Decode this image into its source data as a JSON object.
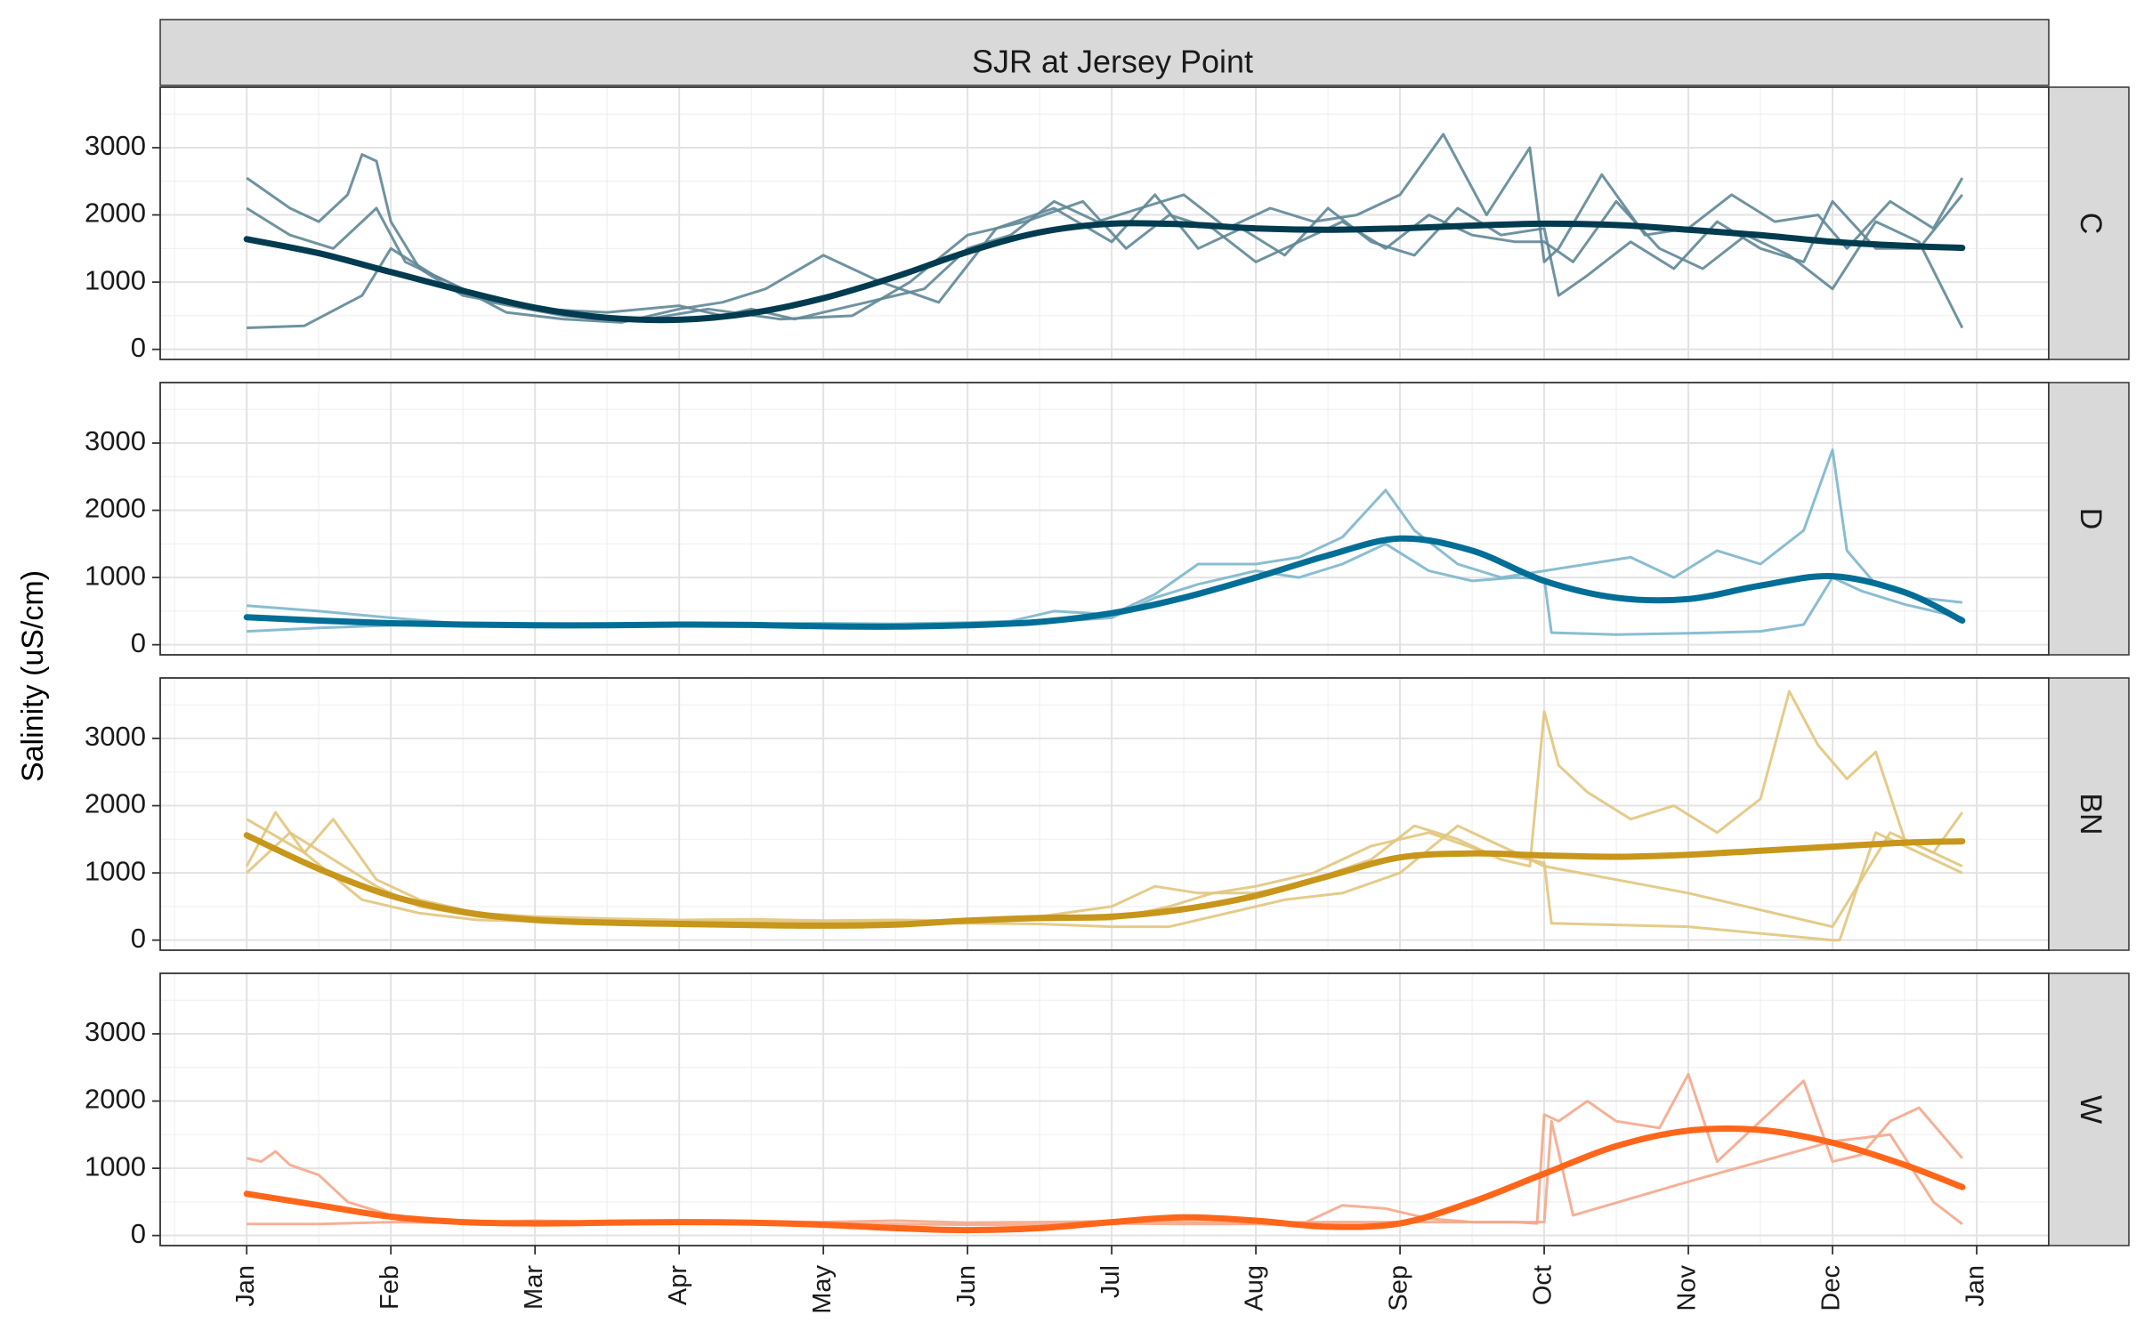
{
  "chart_data": {
    "type": "line",
    "title": "SJR at Jersey Point",
    "ylabel": "Salinity (uS/cm)",
    "xlabel": "",
    "x_ticks": [
      "Jan",
      "Feb",
      "Mar",
      "Apr",
      "May",
      "Jun",
      "Jul",
      "Aug",
      "Sep",
      "Oct",
      "Nov",
      "Dec",
      "Jan"
    ],
    "y_ticks": [
      0,
      1000,
      2000,
      3000
    ],
    "ylim": [
      -150,
      3900
    ],
    "xlim_month": [
      -0.6,
      12.5
    ],
    "grid": true,
    "facets": [
      {
        "label": "C",
        "color": "#003b4f",
        "faint_color": "#5f8796",
        "raw_series": [
          {
            "x": [
              0,
              0.3,
              0.5,
              0.7,
              0.8,
              0.9,
              1.0,
              1.2,
              1.5,
              2.0,
              2.5,
              3.0,
              3.3,
              3.5,
              3.8,
              4.0,
              4.3,
              4.7,
              5.0,
              5.3,
              5.6,
              5.9,
              6.2,
              6.5,
              6.8,
              7.1,
              7.4,
              7.7,
              8.0,
              8.3,
              8.6,
              8.9,
              9.0,
              9.1,
              9.4,
              9.7,
              10.0,
              10.3,
              10.6,
              10.9,
              11.1,
              11.4,
              11.7,
              11.9
            ],
            "y": [
              2550,
              2100,
              1900,
              2300,
              2900,
              2800,
              1900,
              1200,
              800,
              600,
              550,
              650,
              500,
              600,
              450,
              550,
              700,
              900,
              1500,
              1700,
              2200,
              1900,
              2100,
              2300,
              1800,
              2100,
              1900,
              2000,
              2300,
              3200,
              2000,
              3000,
              1300,
              1500,
              2600,
              1700,
              1800,
              2300,
              1900,
              2000,
              1500,
              2200,
              1800,
              2550
            ]
          },
          {
            "x": [
              0,
              0.3,
              0.6,
              0.9,
              1.1,
              1.4,
              1.8,
              2.2,
              2.6,
              3.0,
              3.3,
              3.6,
              4.0,
              4.4,
              4.8,
              5.2,
              5.6,
              6.0,
              6.3,
              6.6,
              6.9,
              7.2,
              7.5,
              7.8,
              8.1,
              8.4,
              8.7,
              9.0,
              9.1,
              9.3,
              9.6,
              9.9,
              10.2,
              10.5,
              10.8,
              11.0,
              11.3,
              11.6,
              11.9
            ],
            "y": [
              2100,
              1700,
              1500,
              2100,
              1300,
              1000,
              550,
              450,
              400,
              600,
              700,
              900,
              1400,
              1000,
              700,
              1800,
              2100,
              1600,
              2300,
              1500,
              1800,
              1400,
              2100,
              1600,
              1400,
              2100,
              1700,
              1800,
              800,
              1100,
              1600,
              1200,
              1900,
              1500,
              1300,
              2200,
              1500,
              1500,
              2300
            ]
          },
          {
            "x": [
              0,
              0.4,
              0.8,
              1.0,
              1.3,
              1.7,
              2.2,
              2.7,
              3.2,
              3.7,
              4.2,
              4.6,
              5.0,
              5.4,
              5.8,
              6.1,
              6.4,
              6.7,
              7.0,
              7.3,
              7.6,
              7.9,
              8.2,
              8.5,
              8.8,
              9.0,
              9.2,
              9.5,
              9.8,
              10.1,
              10.4,
              10.7,
              11.0,
              11.3,
              11.6,
              11.9
            ],
            "y": [
              320,
              350,
              800,
              1500,
              1100,
              700,
              500,
              420,
              600,
              450,
              500,
              1000,
              1700,
              1900,
              2200,
              1500,
              2000,
              1800,
              1300,
              1600,
              1900,
              1500,
              2000,
              1700,
              1600,
              1600,
              1300,
              2200,
              1500,
              1200,
              1700,
              1400,
              900,
              1900,
              1600,
              320
            ]
          }
        ],
        "smooth": {
          "x": [
            0,
            0.5,
            1,
            1.5,
            2,
            2.5,
            3,
            3.5,
            4,
            4.5,
            5,
            5.5,
            6,
            6.5,
            7,
            7.5,
            8,
            8.5,
            9,
            9.5,
            10,
            10.5,
            11,
            11.5,
            11.9
          ],
          "y": [
            1640,
            1430,
            1150,
            870,
            620,
            470,
            440,
            540,
            760,
            1080,
            1450,
            1740,
            1870,
            1860,
            1800,
            1780,
            1800,
            1840,
            1870,
            1850,
            1780,
            1700,
            1600,
            1540,
            1510
          ]
        }
      },
      {
        "label": "D",
        "color": "#006e96",
        "faint_color": "#7cb6cc",
        "raw_series": [
          {
            "x": [
              0,
              0.5,
              1,
              1.5,
              2,
              2.5,
              3,
              3.5,
              4,
              4.5,
              5,
              5.3,
              5.6,
              6.0,
              6.3,
              6.6,
              7.0,
              7.3,
              7.6,
              7.9,
              8.1,
              8.4,
              8.7,
              9.0,
              9.3,
              9.6,
              9.9,
              10.2,
              10.5,
              10.8,
              11.0,
              11.1,
              11.3,
              11.6,
              11.9
            ],
            "y": [
              580,
              500,
              400,
              310,
              290,
              300,
              300,
              310,
              320,
              310,
              330,
              350,
              500,
              450,
              750,
              1200,
              1200,
              1300,
              1600,
              2300,
              1700,
              1200,
              1000,
              1100,
              1200,
              1300,
              1000,
              1400,
              1200,
              1700,
              2900,
              1400,
              900,
              700,
              630
            ]
          },
          {
            "x": [
              0,
              0.5,
              1,
              1.5,
              2,
              2.5,
              3,
              3.5,
              4,
              4.5,
              5,
              5.5,
              6,
              6.3,
              6.6,
              7.0,
              7.3,
              7.6,
              7.9,
              8.2,
              8.5,
              8.8,
              9.0,
              9.05,
              9.5,
              10.0,
              10.5,
              10.8,
              11.0,
              11.2,
              11.5,
              11.9
            ],
            "y": [
              200,
              250,
              290,
              300,
              280,
              300,
              290,
              310,
              300,
              290,
              300,
              330,
              400,
              700,
              900,
              1100,
              1000,
              1200,
              1500,
              1100,
              950,
              1000,
              980,
              180,
              150,
              170,
              200,
              300,
              1000,
              800,
              600,
              400
            ]
          }
        ],
        "smooth": {
          "x": [
            0,
            0.5,
            1,
            1.5,
            2,
            2.5,
            3,
            3.5,
            4,
            4.5,
            5,
            5.5,
            6,
            6.5,
            7,
            7.5,
            8,
            8.5,
            9,
            9.5,
            10,
            10.5,
            11,
            11.5,
            11.9
          ],
          "y": [
            410,
            360,
            320,
            300,
            290,
            290,
            300,
            295,
            275,
            270,
            290,
            340,
            470,
            700,
            1000,
            1330,
            1580,
            1400,
            950,
            700,
            680,
            880,
            1020,
            780,
            360
          ]
        }
      },
      {
        "label": "BN",
        "color": "#c7961a",
        "faint_color": "#e2c57c",
        "raw_series": [
          {
            "x": [
              0,
              0.2,
              0.4,
              0.6,
              0.7,
              0.9,
              1.2,
              1.6,
              2,
              2.5,
              3,
              3.5,
              4,
              4.5,
              5,
              5.5,
              6,
              6.3,
              6.6,
              7.0,
              7.4,
              7.8,
              8.1,
              8.4,
              8.7,
              8.9,
              9.0,
              9.1,
              9.3,
              9.6,
              9.9,
              10.2,
              10.5,
              10.7,
              10.9,
              11.1,
              11.3,
              11.5,
              11.7,
              11.9
            ],
            "y": [
              1100,
              1900,
              1300,
              1800,
              1500,
              900,
              600,
              400,
              350,
              320,
              300,
              310,
              290,
              300,
              290,
              350,
              500,
              800,
              700,
              700,
              900,
              1200,
              1700,
              1500,
              1200,
              1100,
              3400,
              2600,
              2200,
              1800,
              2000,
              1600,
              2100,
              3700,
              2900,
              2400,
              2800,
              1500,
              1300,
              1900
            ]
          },
          {
            "x": [
              0,
              0.3,
              0.6,
              0.9,
              1.2,
              1.6,
              2,
              2.5,
              3,
              3.5,
              4,
              4.5,
              5,
              5.5,
              6,
              6.4,
              6.7,
              7.0,
              7.4,
              7.8,
              8.2,
              8.6,
              8.9,
              9.0,
              9.05,
              10.0,
              11.0,
              11.05,
              11.3,
              11.6,
              11.9
            ],
            "y": [
              1000,
              1600,
              1200,
              800,
              500,
              350,
              300,
              290,
              280,
              270,
              260,
              270,
              280,
              300,
              310,
              500,
              700,
              800,
              1000,
              1400,
              1600,
              1300,
              1200,
              1150,
              250,
              200,
              0,
              0,
              1600,
              1300,
              1000
            ]
          },
          {
            "x": [
              0,
              0.4,
              0.8,
              1.2,
              1.6,
              2,
              2.5,
              3,
              3.5,
              4,
              4.5,
              5,
              5.5,
              6.0,
              6.4,
              6.8,
              7.2,
              7.6,
              8.0,
              8.4,
              8.8,
              9.0,
              10.0,
              11.0,
              11.4,
              11.8,
              11.9
            ],
            "y": [
              1800,
              1300,
              600,
              400,
              300,
              280,
              260,
              250,
              250,
              240,
              250,
              250,
              240,
              200,
              200,
              400,
              600,
              700,
              1000,
              1700,
              1300,
              1100,
              700,
              200,
              1600,
              1200,
              1100
            ]
          }
        ],
        "smooth": {
          "x": [
            0,
            0.5,
            1,
            1.5,
            2,
            2.5,
            3,
            3.5,
            4,
            4.5,
            5,
            5.5,
            6,
            6.5,
            7,
            7.5,
            8,
            8.5,
            9,
            9.5,
            10,
            10.5,
            11,
            11.5,
            11.9
          ],
          "y": [
            1560,
            1060,
            660,
            420,
            300,
            260,
            240,
            225,
            215,
            230,
            290,
            330,
            350,
            460,
            660,
            950,
            1230,
            1290,
            1260,
            1240,
            1270,
            1330,
            1390,
            1450,
            1470
          ]
        }
      },
      {
        "label": "W",
        "color": "#ff661a",
        "faint_color": "#f5a78a",
        "raw_series": [
          {
            "x": [
              0,
              0.1,
              0.2,
              0.3,
              0.5,
              0.7,
              1.0,
              1.5,
              2,
              2.5,
              3,
              3.5,
              4,
              4.5,
              5,
              5.5,
              6,
              6.5,
              7.0,
              7.3,
              7.6,
              7.9,
              8.2,
              8.5,
              8.8,
              8.95,
              9.0,
              9.1,
              9.3,
              9.5,
              9.8,
              10.0,
              10.2,
              10.4,
              10.6,
              10.8,
              11.0,
              11.2,
              11.4,
              11.6,
              11.9
            ],
            "y": [
              1150,
              1100,
              1250,
              1050,
              900,
              500,
              300,
              200,
              180,
              170,
              180,
              170,
              170,
              170,
              160,
              160,
              180,
              170,
              170,
              150,
              450,
              400,
              250,
              200,
              200,
              180,
              1800,
              1700,
              2000,
              1700,
              1600,
              2400,
              1100,
              1500,
              1900,
              2300,
              1100,
              1200,
              1700,
              1900,
              1150
            ]
          },
          {
            "x": [
              0,
              0.5,
              1,
              1.5,
              2,
              2.5,
              3,
              3.5,
              4,
              4.5,
              5,
              5.5,
              6,
              6.5,
              7.0,
              7.5,
              8,
              8.5,
              9.0,
              9.05,
              9.2,
              10.0,
              11.0,
              11.4,
              11.7,
              11.9
            ],
            "y": [
              170,
              170,
              200,
              190,
              220,
              200,
              190,
              210,
              200,
              220,
              190,
              200,
              210,
              200,
              190,
              200,
              200,
              200,
              200,
              1700,
              300,
              800,
              1400,
              1500,
              500,
              170
            ]
          }
        ],
        "smooth": {
          "x": [
            0,
            0.5,
            1,
            1.5,
            2,
            2.5,
            3,
            3.5,
            4,
            4.5,
            5,
            5.5,
            6,
            6.5,
            7,
            7.5,
            8,
            8.5,
            9,
            9.5,
            10,
            10.5,
            11,
            11.5,
            11.9
          ],
          "y": [
            620,
            450,
            280,
            200,
            180,
            190,
            200,
            190,
            160,
            110,
            80,
            110,
            200,
            270,
            220,
            130,
            180,
            500,
            920,
            1330,
            1560,
            1570,
            1380,
            1050,
            720
          ]
        }
      }
    ]
  }
}
